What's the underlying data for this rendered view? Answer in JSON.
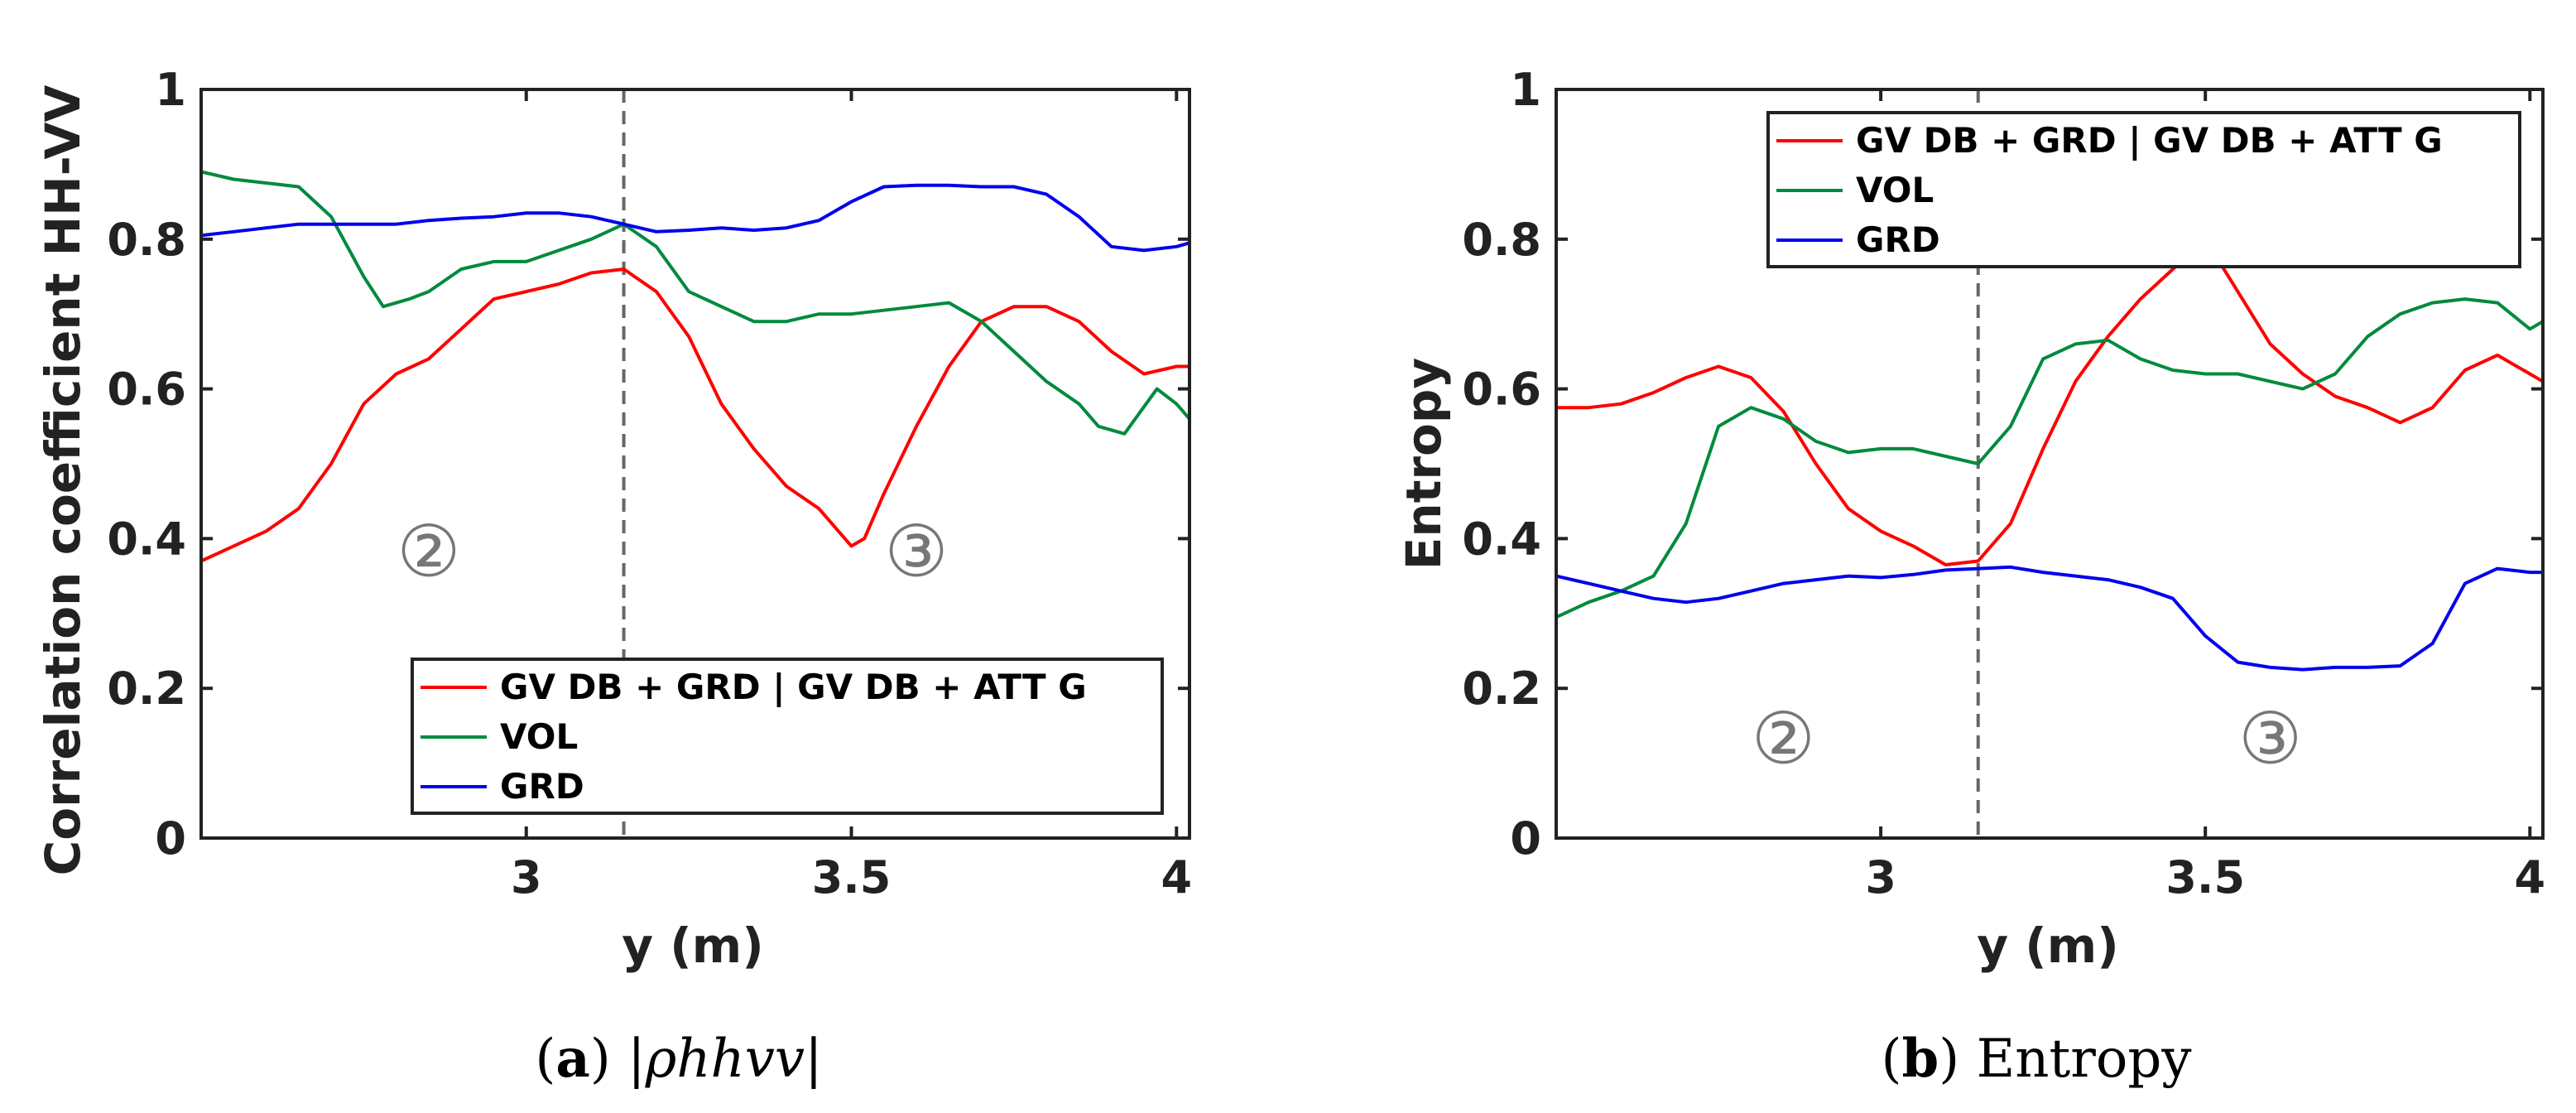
{
  "chart_data": [
    {
      "type": "line",
      "panel_label": "(a)",
      "caption_math": "|ρhhvv|",
      "xlabel": "y (m)",
      "ylabel": "Correlation coefficient HH-VV",
      "xlim": [
        2.5,
        4.02
      ],
      "ylim": [
        0,
        1
      ],
      "xticks": [
        "3",
        "3.5",
        "4"
      ],
      "xtick_values": [
        3,
        3.5,
        4
      ],
      "yticks": [
        "0",
        "0.2",
        "0.4",
        "0.6",
        "0.8",
        "1"
      ],
      "ytick_values": [
        0,
        0.2,
        0.4,
        0.6,
        0.8,
        1
      ],
      "grid": false,
      "legend_position": "bottom-right",
      "vline_x": 3.15,
      "region_markers": [
        {
          "label": "②",
          "x": 2.85,
          "y": 0.35
        },
        {
          "label": "③",
          "x": 3.6,
          "y": 0.35
        }
      ],
      "series": [
        {
          "name": "GV DB + GRD | GV DB + ATT G",
          "color": "#ff0000",
          "x": [
            2.5,
            2.55,
            2.6,
            2.65,
            2.7,
            2.75,
            2.8,
            2.85,
            2.9,
            2.95,
            3.0,
            3.05,
            3.1,
            3.15,
            3.2,
            3.25,
            3.3,
            3.35,
            3.4,
            3.45,
            3.5,
            3.52,
            3.55,
            3.6,
            3.65,
            3.7,
            3.75,
            3.8,
            3.85,
            3.9,
            3.95,
            4.0,
            4.02
          ],
          "y": [
            0.37,
            0.39,
            0.41,
            0.44,
            0.5,
            0.58,
            0.62,
            0.64,
            0.68,
            0.72,
            0.73,
            0.74,
            0.755,
            0.76,
            0.73,
            0.67,
            0.58,
            0.52,
            0.47,
            0.44,
            0.39,
            0.4,
            0.46,
            0.55,
            0.63,
            0.69,
            0.71,
            0.71,
            0.69,
            0.65,
            0.62,
            0.63,
            0.63
          ]
        },
        {
          "name": "VOL",
          "color": "#008a3e",
          "x": [
            2.5,
            2.55,
            2.6,
            2.65,
            2.7,
            2.75,
            2.78,
            2.82,
            2.85,
            2.9,
            2.95,
            3.0,
            3.05,
            3.1,
            3.15,
            3.2,
            3.25,
            3.3,
            3.35,
            3.4,
            3.45,
            3.5,
            3.55,
            3.6,
            3.65,
            3.7,
            3.75,
            3.8,
            3.85,
            3.88,
            3.92,
            3.97,
            4.0,
            4.02
          ],
          "y": [
            0.89,
            0.88,
            0.875,
            0.87,
            0.83,
            0.75,
            0.71,
            0.72,
            0.73,
            0.76,
            0.77,
            0.77,
            0.785,
            0.8,
            0.82,
            0.79,
            0.73,
            0.71,
            0.69,
            0.69,
            0.7,
            0.7,
            0.705,
            0.71,
            0.715,
            0.69,
            0.65,
            0.61,
            0.58,
            0.55,
            0.54,
            0.6,
            0.58,
            0.56
          ]
        },
        {
          "name": "GRD",
          "color": "#0000ee",
          "x": [
            2.5,
            2.55,
            2.6,
            2.65,
            2.7,
            2.75,
            2.8,
            2.85,
            2.9,
            2.95,
            3.0,
            3.05,
            3.1,
            3.15,
            3.2,
            3.25,
            3.3,
            3.35,
            3.4,
            3.45,
            3.5,
            3.55,
            3.6,
            3.65,
            3.7,
            3.75,
            3.8,
            3.85,
            3.9,
            3.95,
            4.0,
            4.02
          ],
          "y": [
            0.805,
            0.81,
            0.815,
            0.82,
            0.82,
            0.82,
            0.82,
            0.825,
            0.828,
            0.83,
            0.835,
            0.835,
            0.83,
            0.82,
            0.81,
            0.812,
            0.815,
            0.812,
            0.815,
            0.825,
            0.85,
            0.87,
            0.872,
            0.872,
            0.87,
            0.87,
            0.86,
            0.83,
            0.79,
            0.785,
            0.79,
            0.795
          ]
        }
      ]
    },
    {
      "type": "line",
      "panel_label": "(b)",
      "caption_text": "Entropy",
      "xlabel": "y (m)",
      "ylabel": "Entropy",
      "xlim": [
        2.5,
        4.02
      ],
      "ylim": [
        0,
        1
      ],
      "xticks": [
        "3",
        "3.5",
        "4"
      ],
      "xtick_values": [
        3,
        3.5,
        4
      ],
      "yticks": [
        "0",
        "0.2",
        "0.4",
        "0.6",
        "0.8",
        "1"
      ],
      "ytick_values": [
        0,
        0.2,
        0.4,
        0.6,
        0.8,
        1
      ],
      "grid": false,
      "legend_position": "top-right",
      "vline_x": 3.15,
      "region_markers": [
        {
          "label": "②",
          "x": 2.85,
          "y": 0.1
        },
        {
          "label": "③",
          "x": 3.6,
          "y": 0.1
        }
      ],
      "series": [
        {
          "name": "GV DB + GRD | GV DB + ATT G",
          "color": "#ff0000",
          "x": [
            2.5,
            2.55,
            2.6,
            2.65,
            2.7,
            2.75,
            2.8,
            2.85,
            2.9,
            2.95,
            3.0,
            3.05,
            3.1,
            3.15,
            3.2,
            3.25,
            3.3,
            3.35,
            3.4,
            3.45,
            3.5,
            3.55,
            3.6,
            3.65,
            3.7,
            3.75,
            3.8,
            3.85,
            3.9,
            3.95,
            4.0,
            4.02
          ],
          "y": [
            0.575,
            0.575,
            0.58,
            0.595,
            0.615,
            0.63,
            0.615,
            0.57,
            0.5,
            0.44,
            0.41,
            0.39,
            0.365,
            0.37,
            0.42,
            0.52,
            0.61,
            0.67,
            0.72,
            0.76,
            0.8,
            0.73,
            0.66,
            0.62,
            0.59,
            0.575,
            0.555,
            0.575,
            0.625,
            0.645,
            0.62,
            0.61
          ]
        },
        {
          "name": "VOL",
          "color": "#008a3e",
          "x": [
            2.5,
            2.55,
            2.6,
            2.65,
            2.7,
            2.75,
            2.8,
            2.85,
            2.9,
            2.95,
            3.0,
            3.05,
            3.1,
            3.15,
            3.2,
            3.25,
            3.3,
            3.35,
            3.4,
            3.45,
            3.5,
            3.55,
            3.6,
            3.65,
            3.7,
            3.75,
            3.8,
            3.85,
            3.9,
            3.95,
            4.0,
            4.02
          ],
          "y": [
            0.295,
            0.315,
            0.33,
            0.35,
            0.42,
            0.55,
            0.575,
            0.56,
            0.53,
            0.515,
            0.52,
            0.52,
            0.51,
            0.5,
            0.55,
            0.64,
            0.66,
            0.665,
            0.64,
            0.625,
            0.62,
            0.62,
            0.61,
            0.6,
            0.62,
            0.67,
            0.7,
            0.715,
            0.72,
            0.715,
            0.68,
            0.69
          ]
        },
        {
          "name": "GRD",
          "color": "#0000ee",
          "x": [
            2.5,
            2.55,
            2.6,
            2.65,
            2.7,
            2.75,
            2.8,
            2.85,
            2.9,
            2.95,
            3.0,
            3.05,
            3.1,
            3.15,
            3.2,
            3.25,
            3.3,
            3.35,
            3.4,
            3.45,
            3.5,
            3.55,
            3.6,
            3.65,
            3.7,
            3.75,
            3.8,
            3.85,
            3.9,
            3.95,
            4.0,
            4.02
          ],
          "y": [
            0.35,
            0.34,
            0.33,
            0.32,
            0.315,
            0.32,
            0.33,
            0.34,
            0.345,
            0.35,
            0.348,
            0.352,
            0.358,
            0.36,
            0.362,
            0.355,
            0.35,
            0.345,
            0.335,
            0.32,
            0.27,
            0.235,
            0.228,
            0.225,
            0.228,
            0.228,
            0.23,
            0.26,
            0.34,
            0.36,
            0.355,
            0.355
          ]
        }
      ]
    }
  ]
}
